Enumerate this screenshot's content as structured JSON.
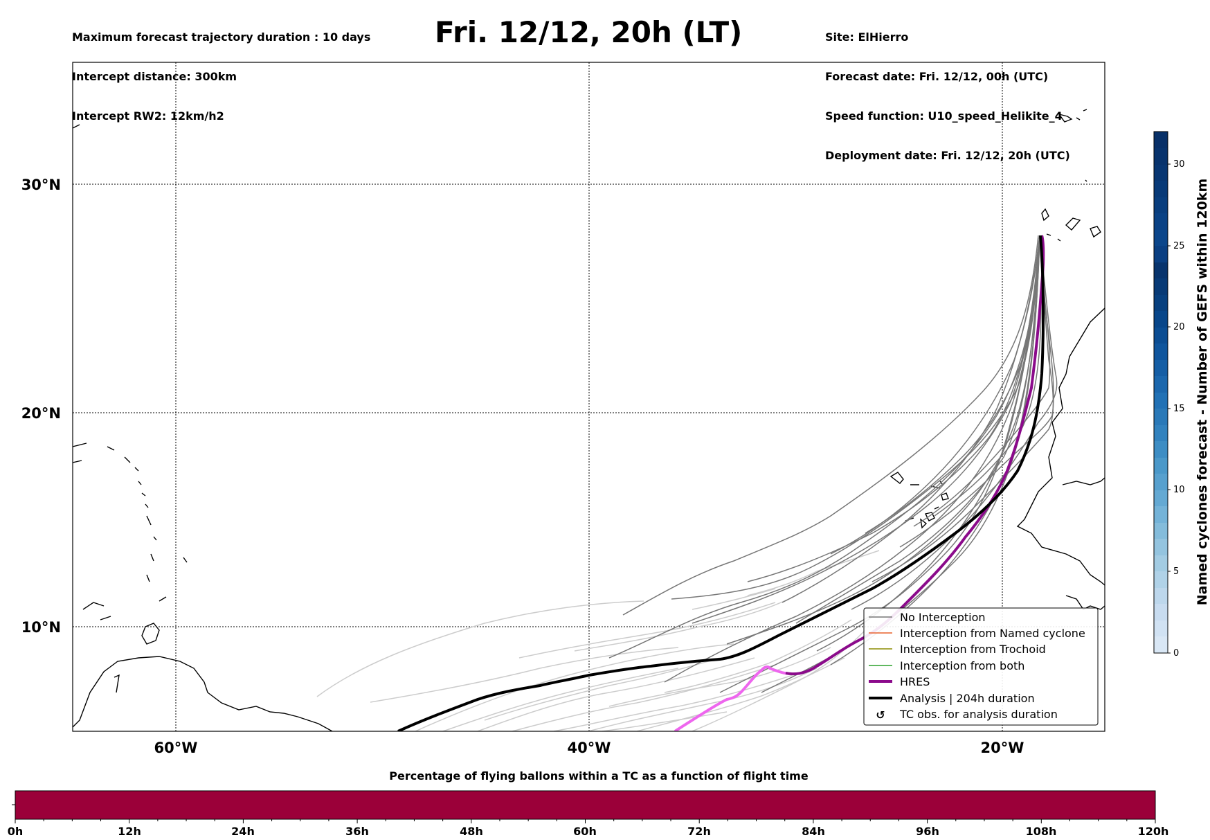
{
  "header": {
    "left_lines": [
      "Maximum forecast trajectory duration : 10 days",
      "Intercept distance: 300km",
      "Intercept RW2: 12km/h2"
    ],
    "title": "Fri. 12/12, 20h (LT)",
    "right_lines": [
      "Site: ElHierro",
      "Forecast date: Fri. 12/12, 00h (UTC)",
      "Speed function: U10_speed_Helikite_4",
      "Deployment date: Fri. 12/12, 20h (UTC)"
    ]
  },
  "map": {
    "lat_labels": [
      "30°N",
      "20°N",
      "10°N"
    ],
    "lon_labels": [
      "60°W",
      "40°W",
      "20°W"
    ],
    "colors": {
      "no_interception": "#777777",
      "named_cyclone": "#e8602c",
      "trochoid": "#8b8b00",
      "both": "#2ca02c",
      "hres": "#8b0a8b",
      "hres_early": "#ee66ee",
      "analysis": "#000000",
      "ensemble_faint": "#cccccc"
    }
  },
  "legend": {
    "items": [
      {
        "label": "No Interception"
      },
      {
        "label": "Interception from Named cyclone"
      },
      {
        "label": "Interception from Trochoid"
      },
      {
        "label": "Interception from both"
      },
      {
        "label": "HRES"
      },
      {
        "label": "Analysis | 204h duration"
      },
      {
        "label": "TC obs. for analysis duration"
      }
    ],
    "tc_symbol": "↺"
  },
  "colorbar": {
    "label": "Named cyclones forecast - Number of GEFS within 120km",
    "ticks": [
      "0",
      "5",
      "10",
      "15",
      "20",
      "25",
      "30"
    ]
  },
  "timeline": {
    "title": "Percentage of flying ballons within a TC as a function of flight time",
    "ticks": [
      "0h",
      "12h",
      "24h",
      "36h",
      "48h",
      "60h",
      "72h",
      "84h",
      "96h",
      "108h",
      "120h"
    ],
    "fill_color": "#9b0039",
    "percentage_visible": 100
  }
}
